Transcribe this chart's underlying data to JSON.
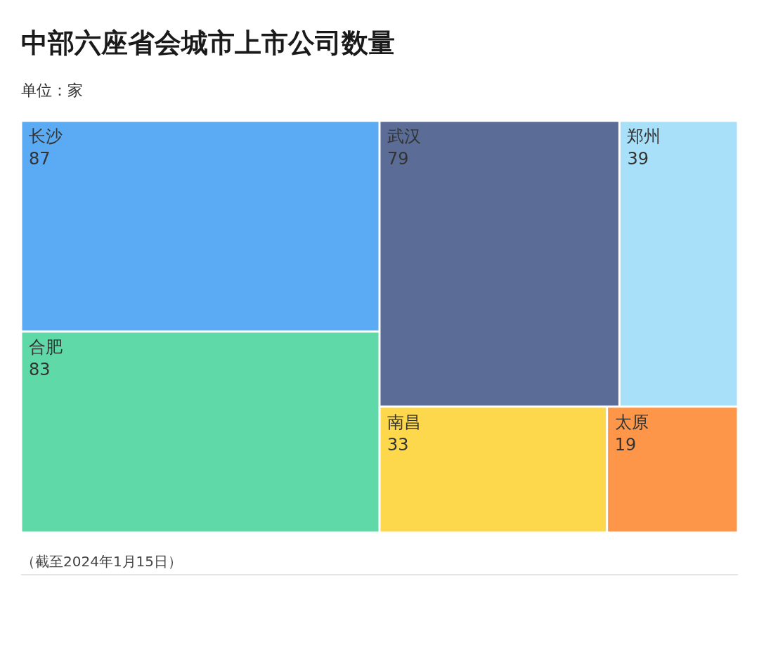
{
  "chart_data": {
    "type": "other",
    "title": "中部六座省会城市上市公司数量",
    "subtitle": "单位：家",
    "categories": [
      "长沙",
      "合肥",
      "武汉",
      "郑州",
      "南昌",
      "太原"
    ],
    "values": [
      87,
      83,
      79,
      39,
      33,
      19
    ],
    "colors": [
      "#5aabf3",
      "#60d9a9",
      "#5b6d96",
      "#a8dff9",
      "#fdd84c",
      "#fe964a"
    ],
    "data_labels": true,
    "annotations": [
      "（截至2024年1月15日）"
    ]
  }
}
